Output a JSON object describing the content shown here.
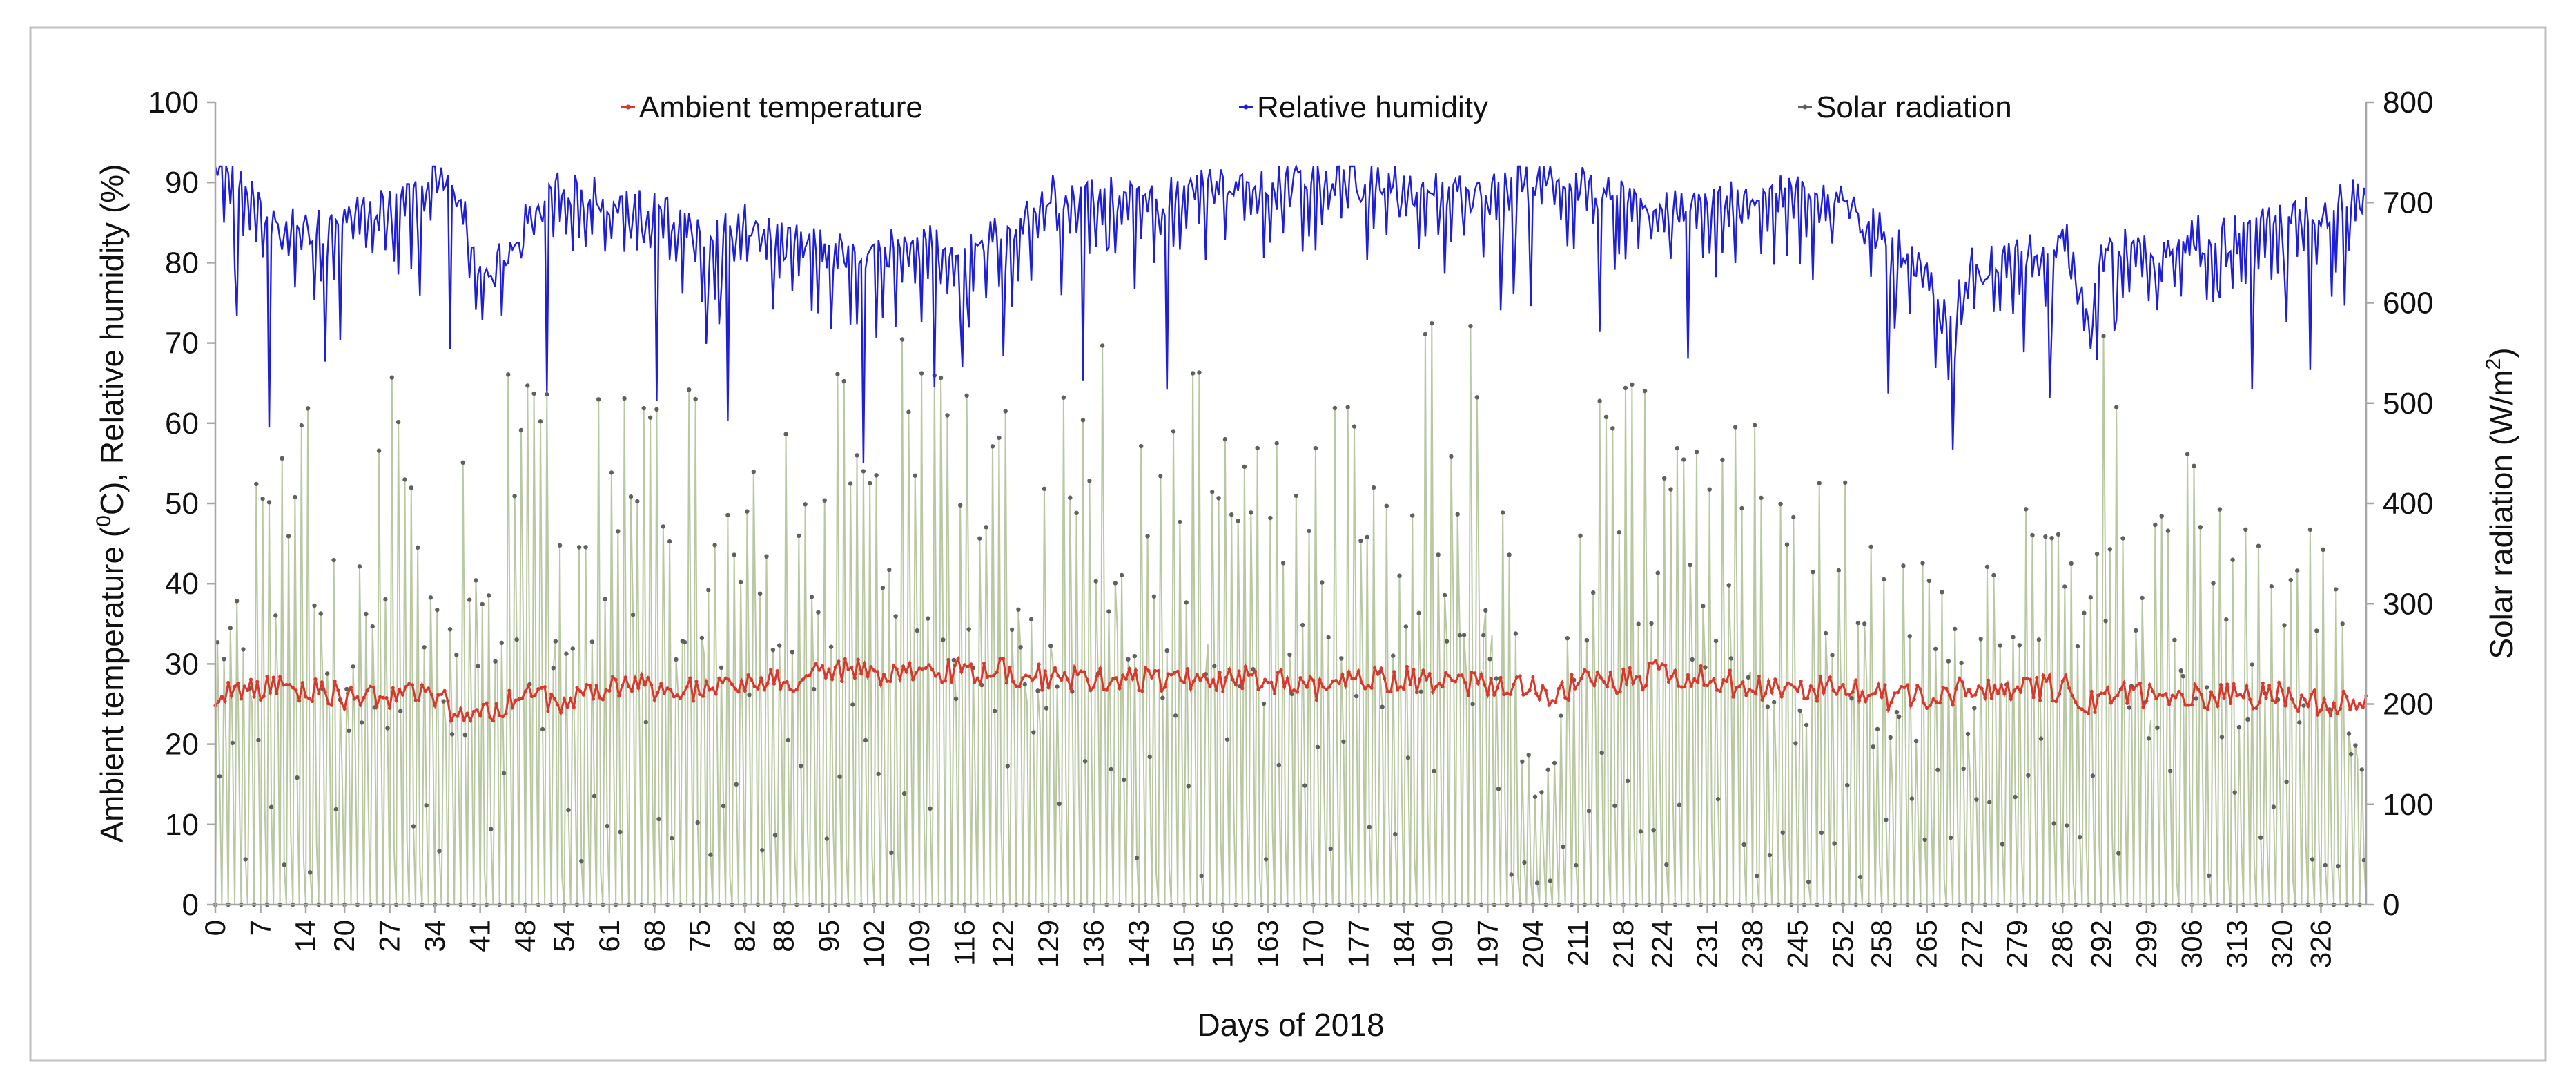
{
  "chart_data": {
    "type": "line",
    "title": "",
    "xlabel": "Days of 2018",
    "ylabel_left_pre": "Ambient temperature (",
    "ylabel_left_sup": "0",
    "ylabel_left_post": "C), Relative humidity (%)",
    "ylabel_right_pre": "Solar radiation (W/m",
    "ylabel_right_sup": "2",
    "ylabel_right_post": ")",
    "xlim": [
      0,
      333
    ],
    "ylim_left": [
      0,
      100
    ],
    "ylim_right": [
      0,
      800
    ],
    "left_ticks": [
      "0",
      "10",
      "20",
      "30",
      "40",
      "50",
      "60",
      "70",
      "80",
      "90",
      "100"
    ],
    "right_ticks": [
      "0",
      "100",
      "200",
      "300",
      "400",
      "500",
      "600",
      "700",
      "800"
    ],
    "x_ticks": [
      "0",
      "7",
      "14",
      "20",
      "27",
      "34",
      "41",
      "48",
      "54",
      "61",
      "68",
      "75",
      "82",
      "88",
      "95",
      "102",
      "109",
      "116",
      "122",
      "129",
      "136",
      "143",
      "150",
      "156",
      "163",
      "170",
      "177",
      "184",
      "190",
      "197",
      "204",
      "211",
      "218",
      "224",
      "231",
      "238",
      "245",
      "252",
      "258",
      "265",
      "272",
      "279",
      "286",
      "292",
      "299",
      "306",
      "313",
      "320",
      "326"
    ],
    "legend": [
      {
        "name": "Ambient temperature",
        "color": "#d9382c"
      },
      {
        "name": "Relative humidity",
        "color": "#1f1fd6"
      },
      {
        "name": "Solar radiation",
        "color": "#606060"
      }
    ],
    "legend_position": "top-center",
    "series": [
      {
        "name": "Relative humidity",
        "axis": "left",
        "unit": "%",
        "x": [
          0,
          7,
          14,
          20,
          27,
          34,
          38,
          41,
          48,
          54,
          61,
          68,
          75,
          82,
          88,
          95,
          102,
          109,
          116,
          122,
          129,
          136,
          143,
          150,
          156,
          163,
          170,
          177,
          184,
          190,
          197,
          204,
          206,
          211,
          218,
          224,
          231,
          238,
          245,
          252,
          258,
          265,
          268,
          272,
          279,
          286,
          290,
          292,
          299,
          306,
          313,
          320,
          326,
          333
        ],
        "values": [
          91,
          82,
          81,
          82,
          84,
          89,
          84,
          74,
          82,
          86,
          84,
          83,
          80,
          82,
          79,
          78,
          78,
          79,
          79,
          80,
          85,
          86,
          84,
          85,
          87,
          87,
          87,
          87,
          86,
          85,
          86,
          87,
          88,
          86,
          85,
          83,
          84,
          85,
          85,
          84,
          80,
          74,
          70,
          76,
          78,
          79,
          70,
          79,
          78,
          80,
          80,
          82,
          83,
          86
        ]
      },
      {
        "name": "Ambient temperature",
        "axis": "left",
        "unit": "°C",
        "x": [
          0,
          7,
          14,
          20,
          27,
          34,
          36,
          41,
          48,
          54,
          61,
          68,
          75,
          82,
          88,
          95,
          102,
          109,
          116,
          122,
          129,
          136,
          143,
          150,
          156,
          163,
          170,
          177,
          184,
          190,
          197,
          204,
          206,
          211,
          218,
          224,
          231,
          238,
          245,
          252,
          258,
          265,
          272,
          279,
          286,
          290,
          292,
          299,
          306,
          313,
          320,
          326,
          333
        ],
        "values": [
          26,
          27,
          27,
          26,
          26,
          26,
          24,
          24,
          26,
          25,
          27,
          27,
          27,
          27,
          28,
          29,
          29,
          29,
          29,
          29,
          28,
          28,
          28,
          28,
          28,
          28,
          27,
          28,
          28,
          28,
          27,
          27,
          25,
          28,
          28,
          29,
          28,
          27,
          27,
          27,
          26,
          26,
          27,
          27,
          27,
          25,
          26,
          26,
          26,
          26,
          26,
          25,
          25
        ]
      },
      {
        "name": "Solar radiation",
        "axis": "right",
        "unit": "W/m2",
        "x": [
          0,
          7,
          14,
          20,
          27,
          34,
          41,
          48,
          54,
          61,
          68,
          75,
          82,
          88,
          95,
          102,
          109,
          116,
          122,
          129,
          136,
          143,
          150,
          156,
          163,
          170,
          177,
          184,
          190,
          197,
          204,
          206,
          211,
          218,
          224,
          231,
          238,
          245,
          252,
          258,
          265,
          272,
          279,
          286,
          292,
          299,
          306,
          313,
          320,
          326,
          333
        ],
        "values": [
          480,
          420,
          510,
          360,
          510,
          300,
          520,
          560,
          440,
          560,
          540,
          500,
          480,
          540,
          520,
          520,
          560,
          520,
          500,
          460,
          540,
          540,
          540,
          460,
          440,
          560,
          440,
          560,
          580,
          540,
          140,
          130,
          480,
          500,
          520,
          460,
          460,
          380,
          460,
          360,
          350,
          380,
          480,
          360,
          560,
          340,
          520,
          370,
          360,
          360,
          250
        ]
      }
    ]
  }
}
